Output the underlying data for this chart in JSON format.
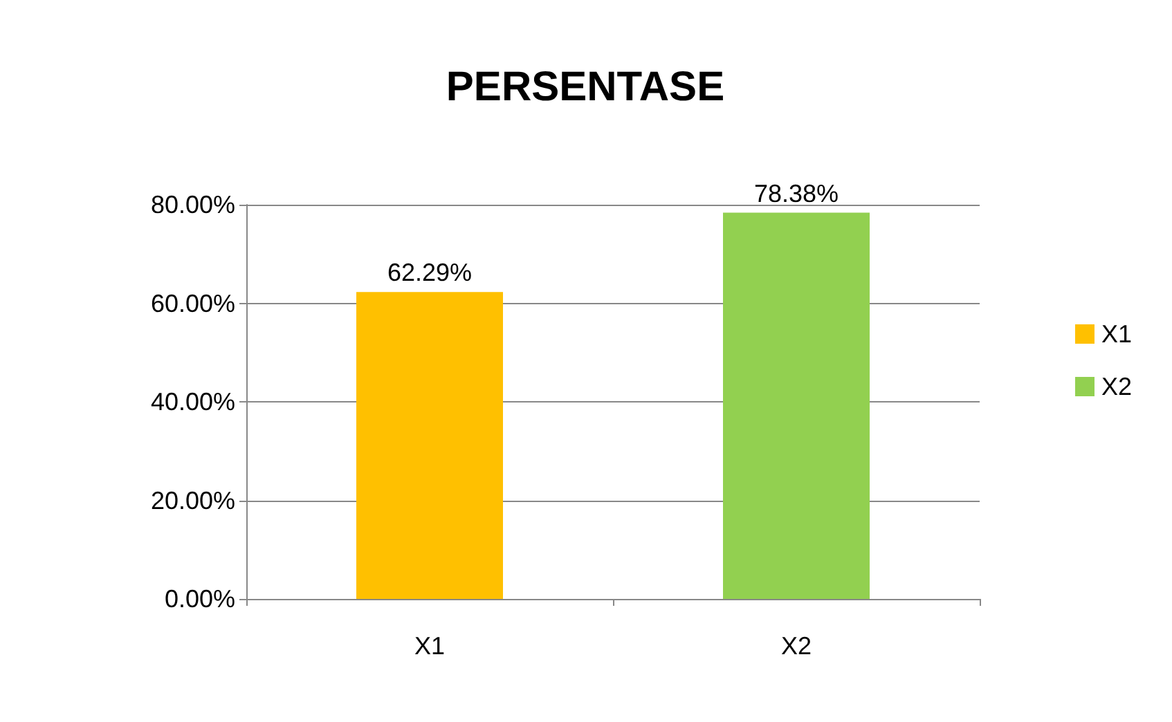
{
  "chart_data": {
    "type": "bar",
    "title": "PERSENTASE",
    "categories": [
      "X1",
      "X2"
    ],
    "series": [
      {
        "name": "X1",
        "color": "#ffc000",
        "values": [
          62.29,
          null
        ],
        "value_labels": [
          "62.29%",
          null
        ]
      },
      {
        "name": "X2",
        "color": "#92d050",
        "values": [
          null,
          78.38
        ],
        "value_labels": [
          null,
          "78.38%"
        ]
      }
    ],
    "ylim": [
      0,
      80
    ],
    "yticks": [
      {
        "value": 0,
        "label": "0.00%"
      },
      {
        "value": 20,
        "label": "20.00%"
      },
      {
        "value": 40,
        "label": "40.00%"
      },
      {
        "value": 60,
        "label": "60.00%"
      },
      {
        "value": 80,
        "label": "80.00%"
      }
    ],
    "grid": true,
    "legend": "right"
  }
}
